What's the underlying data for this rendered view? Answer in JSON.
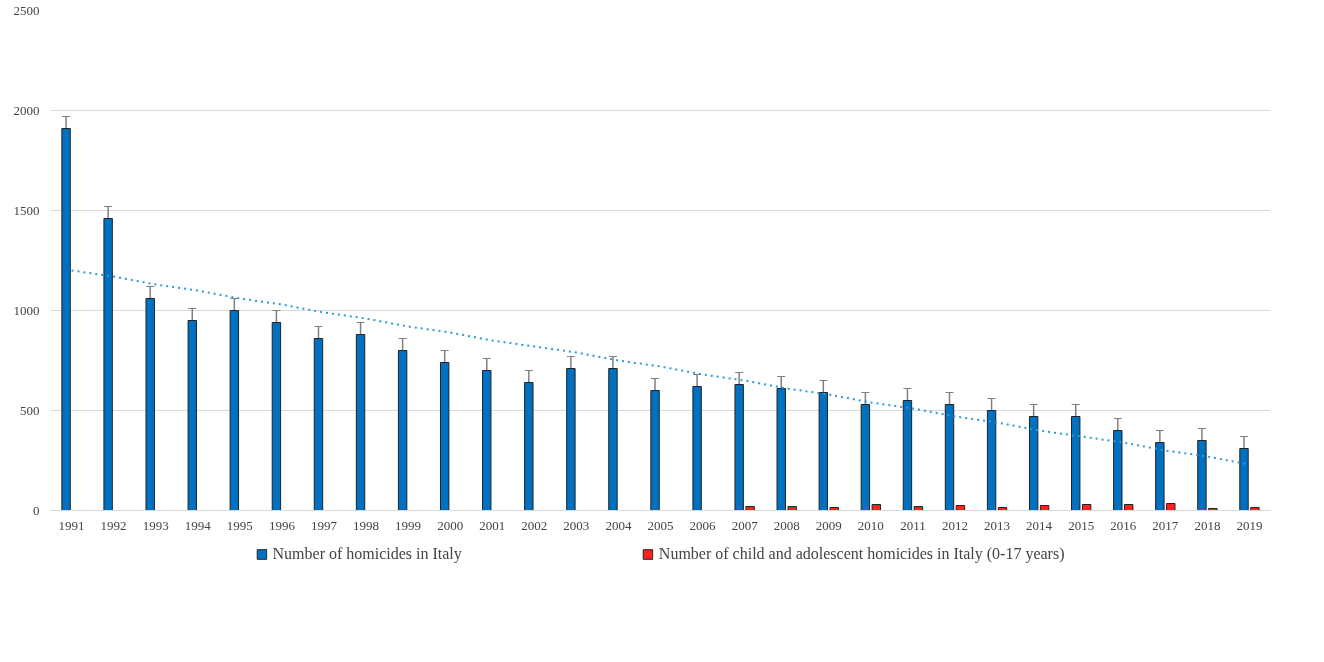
{
  "chart_data": {
    "type": "bar",
    "categories": [
      "1991",
      "1992",
      "1993",
      "1994",
      "1995",
      "1996",
      "1997",
      "1998",
      "1999",
      "2000",
      "2001",
      "2002",
      "2003",
      "2004",
      "2005",
      "2006",
      "2007",
      "2008",
      "2009",
      "2010",
      "2011",
      "2012",
      "2013",
      "2014",
      "2015",
      "2016",
      "2017",
      "2018",
      "2019"
    ],
    "series": [
      {
        "name": "Number of homicides in Italy",
        "color": "#0070c0",
        "values": [
          1910,
          1460,
          1060,
          950,
          1000,
          940,
          860,
          880,
          800,
          740,
          700,
          640,
          710,
          710,
          600,
          620,
          630,
          610,
          590,
          530,
          550,
          530,
          500,
          470,
          470,
          400,
          340,
          350,
          310
        ],
        "errors": [
          60,
          60,
          60,
          60,
          60,
          60,
          60,
          60,
          60,
          60,
          60,
          60,
          60,
          60,
          60,
          60,
          60,
          60,
          60,
          60,
          60,
          60,
          60,
          60,
          60,
          60,
          60,
          60,
          60
        ]
      },
      {
        "name": "Number of child and adolescent homicides in Italy (0-17 years)",
        "color": "#ff2020",
        "values": [
          null,
          null,
          null,
          null,
          null,
          null,
          null,
          null,
          null,
          null,
          null,
          null,
          null,
          null,
          null,
          null,
          20,
          20,
          15,
          30,
          20,
          25,
          15,
          25,
          30,
          30,
          35,
          10,
          15
        ]
      },
      {
        "type": "line",
        "color": "#2e9bd6",
        "line_style": "dotted",
        "values": [
          1200,
          1170,
          1130,
          1100,
          1060,
          1030,
          990,
          960,
          920,
          890,
          850,
          820,
          790,
          750,
          720,
          680,
          650,
          610,
          580,
          540,
          510,
          470,
          440,
          400,
          370,
          340,
          300,
          270,
          230
        ]
      }
    ],
    "ylim": [
      0,
      2500
    ],
    "yticks": [
      0,
      500,
      1000,
      1500,
      2000,
      2500
    ],
    "grid": "y",
    "legend": "bottom"
  }
}
